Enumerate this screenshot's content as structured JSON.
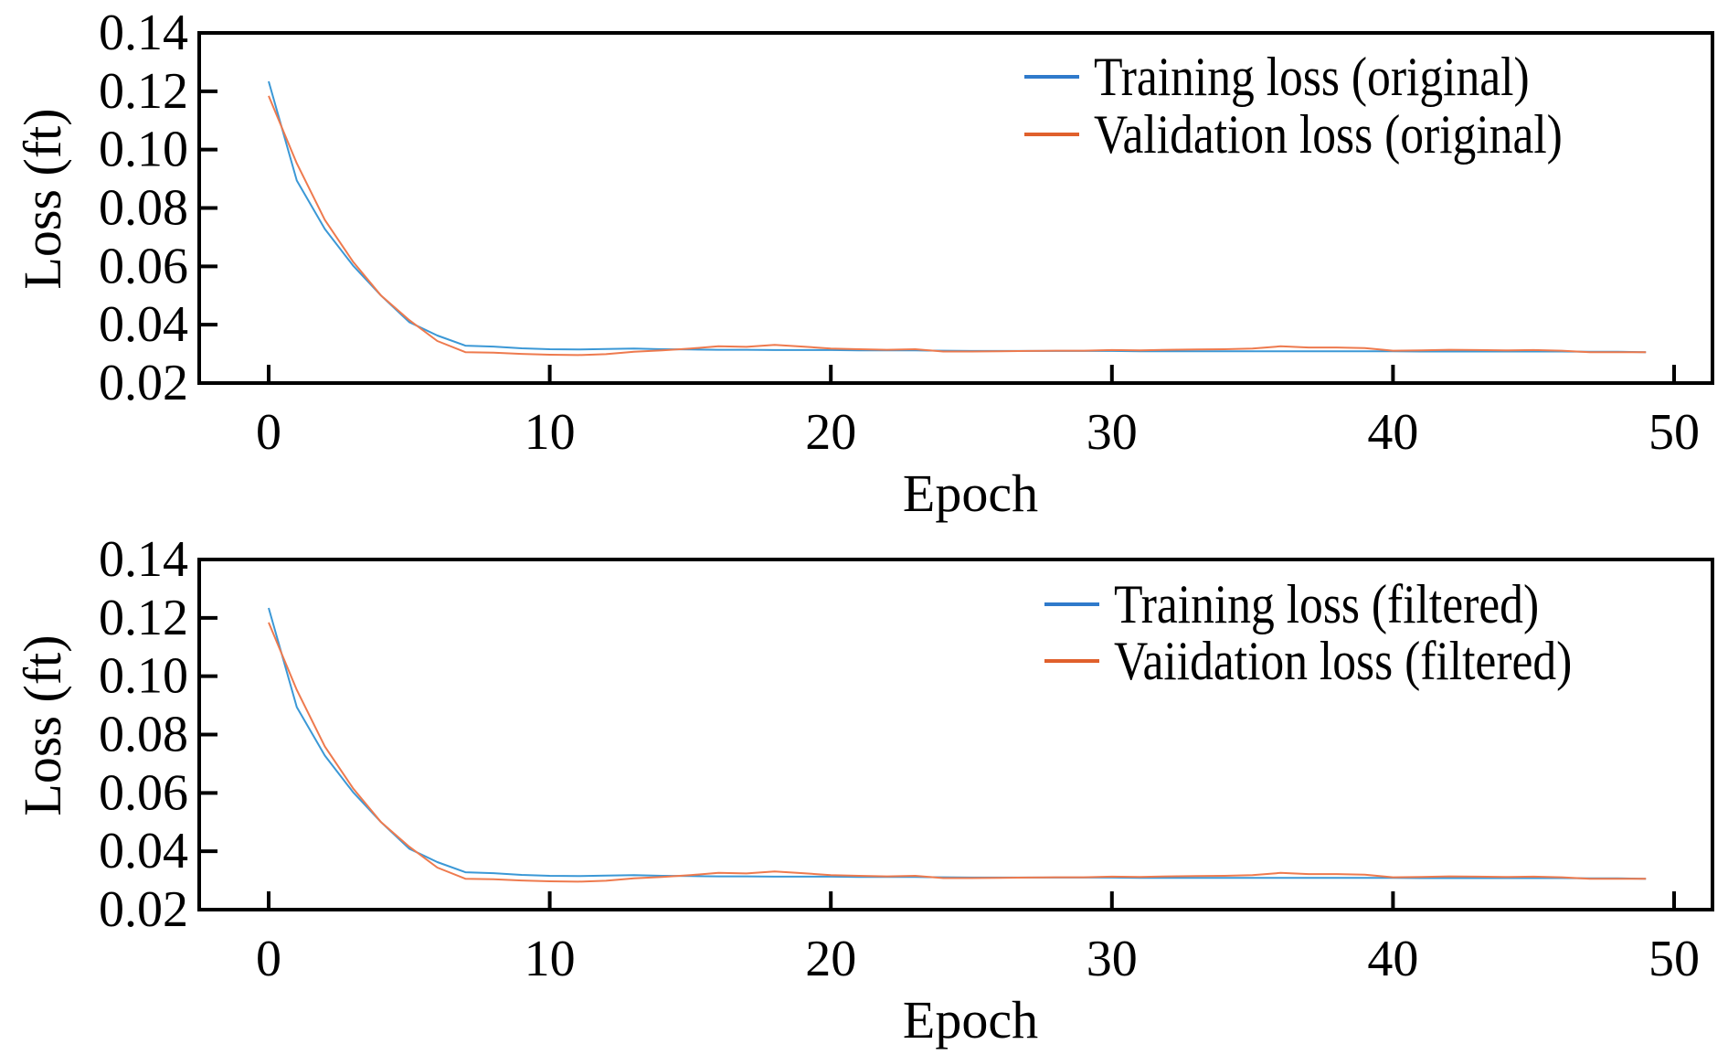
{
  "chart_data": [
    {
      "type": "line",
      "title": "",
      "xlabel": "Epoch",
      "ylabel": "Loss (ft)",
      "xlim": [
        -2.5,
        50.5
      ],
      "ylim": [
        0.02,
        0.14
      ],
      "xticks": [
        0,
        10,
        20,
        30,
        40,
        50
      ],
      "xtick_labels": [
        "0",
        "10",
        "20",
        "30",
        "40",
        "50"
      ],
      "yticks": [
        0.02,
        0.04,
        0.06,
        0.08,
        0.1,
        0.12,
        0.14
      ],
      "ytick_labels": [
        "0.02",
        "0.04",
        "0.06",
        "0.08",
        "0.10",
        "0.12",
        "0.14"
      ],
      "grid": false,
      "legend_position": "top-right",
      "x": [
        0,
        1,
        2,
        3,
        4,
        5,
        6,
        7,
        8,
        9,
        10,
        11,
        12,
        13,
        14,
        15,
        16,
        17,
        18,
        19,
        20,
        21,
        22,
        23,
        24,
        25,
        26,
        27,
        28,
        29,
        30,
        31,
        32,
        33,
        34,
        35,
        36,
        37,
        38,
        39,
        40,
        41,
        42,
        43,
        44,
        45,
        46,
        47,
        48,
        49
      ],
      "series": [
        {
          "name": "Training loss (original)",
          "color": "#3B98D6",
          "legend_color": "#2F7ACB",
          "values": [
            0.1234,
            0.0894,
            0.0728,
            0.0603,
            0.05,
            0.0409,
            0.0363,
            0.0328,
            0.0325,
            0.0319,
            0.0316,
            0.0315,
            0.0317,
            0.0318,
            0.0316,
            0.0315,
            0.0314,
            0.0314,
            0.0313,
            0.0313,
            0.0313,
            0.0312,
            0.0312,
            0.0312,
            0.0311,
            0.031,
            0.031,
            0.031,
            0.031,
            0.031,
            0.031,
            0.0309,
            0.0309,
            0.0309,
            0.0309,
            0.0309,
            0.0309,
            0.0309,
            0.0309,
            0.0309,
            0.0309,
            0.0308,
            0.0308,
            0.0308,
            0.0308,
            0.0308,
            0.0308,
            0.0307,
            0.0307,
            0.0306
          ]
        },
        {
          "name": "Validation loss (original)",
          "color": "#EE7A4E",
          "legend_color": "#E0602C",
          "values": [
            0.1184,
            0.0953,
            0.0759,
            0.0616,
            0.05,
            0.0416,
            0.0344,
            0.0306,
            0.0304,
            0.03,
            0.0297,
            0.0296,
            0.0299,
            0.0307,
            0.0312,
            0.0318,
            0.0326,
            0.0324,
            0.0331,
            0.0325,
            0.0318,
            0.0316,
            0.0314,
            0.0316,
            0.0308,
            0.0308,
            0.0309,
            0.031,
            0.0311,
            0.0311,
            0.0313,
            0.0312,
            0.0314,
            0.0315,
            0.0316,
            0.0318,
            0.0326,
            0.0322,
            0.0322,
            0.032,
            0.0311,
            0.0312,
            0.0314,
            0.0313,
            0.0312,
            0.0313,
            0.0311,
            0.0306,
            0.0306,
            0.0306
          ]
        }
      ]
    },
    {
      "type": "line",
      "title": "",
      "xlabel": "Epoch",
      "ylabel": "Loss (ft)",
      "xlim": [
        -2.5,
        50.5
      ],
      "ylim": [
        0.02,
        0.14
      ],
      "xticks": [
        0,
        10,
        20,
        30,
        40,
        50
      ],
      "xtick_labels": [
        "0",
        "10",
        "20",
        "30",
        "40",
        "50"
      ],
      "yticks": [
        0.02,
        0.04,
        0.06,
        0.08,
        0.1,
        0.12,
        0.14
      ],
      "ytick_labels": [
        "0.02",
        "0.04",
        "0.06",
        "0.08",
        "0.10",
        "0.12",
        "0.14"
      ],
      "grid": false,
      "legend_position": "top-right",
      "x": [
        0,
        1,
        2,
        3,
        4,
        5,
        6,
        7,
        8,
        9,
        10,
        11,
        12,
        13,
        14,
        15,
        16,
        17,
        18,
        19,
        20,
        21,
        22,
        23,
        24,
        25,
        26,
        27,
        28,
        29,
        30,
        31,
        32,
        33,
        34,
        35,
        36,
        37,
        38,
        39,
        40,
        41,
        42,
        43,
        44,
        45,
        46,
        47,
        48,
        49
      ],
      "series": [
        {
          "name": "Training loss (filtered)",
          "color": "#3B98D6",
          "legend_color": "#2F7ACB",
          "values": [
            0.1234,
            0.0894,
            0.0728,
            0.0603,
            0.05,
            0.0409,
            0.0363,
            0.0328,
            0.0325,
            0.0319,
            0.0316,
            0.0315,
            0.0317,
            0.0318,
            0.0316,
            0.0315,
            0.0314,
            0.0314,
            0.0313,
            0.0313,
            0.0313,
            0.0312,
            0.0312,
            0.0312,
            0.0311,
            0.031,
            0.031,
            0.031,
            0.031,
            0.031,
            0.031,
            0.0309,
            0.0309,
            0.0309,
            0.0309,
            0.0309,
            0.0309,
            0.0309,
            0.0309,
            0.0309,
            0.0309,
            0.0308,
            0.0308,
            0.0308,
            0.0308,
            0.0308,
            0.0308,
            0.0307,
            0.0307,
            0.0306
          ]
        },
        {
          "name": "Vaiidation loss (filtered)",
          "color": "#EE7A4E",
          "legend_color": "#E0602C",
          "values": [
            0.1184,
            0.0953,
            0.0759,
            0.0616,
            0.05,
            0.0416,
            0.0344,
            0.0306,
            0.0304,
            0.03,
            0.0297,
            0.0296,
            0.0299,
            0.0307,
            0.0312,
            0.0318,
            0.0326,
            0.0324,
            0.0331,
            0.0325,
            0.0318,
            0.0316,
            0.0314,
            0.0316,
            0.0308,
            0.0308,
            0.0309,
            0.031,
            0.0311,
            0.0311,
            0.0313,
            0.0312,
            0.0314,
            0.0315,
            0.0316,
            0.0318,
            0.0326,
            0.0322,
            0.0322,
            0.032,
            0.0311,
            0.0312,
            0.0314,
            0.0313,
            0.0312,
            0.0313,
            0.0311,
            0.0306,
            0.0306,
            0.0306
          ]
        }
      ]
    }
  ]
}
